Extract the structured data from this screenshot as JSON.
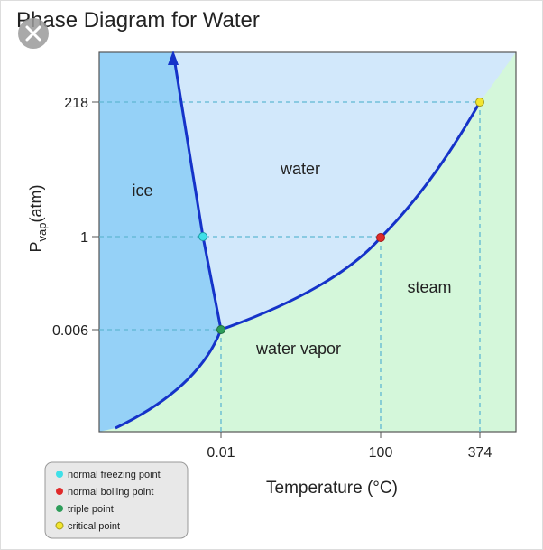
{
  "title": "Phase Diagram for Water",
  "y_axis": {
    "label": {
      "main": "P",
      "subscript": "vap",
      "unit": "(atm)"
    },
    "ticks": [
      "218",
      "1",
      "0.006"
    ]
  },
  "x_axis": {
    "label": "Temperature (°C)",
    "ticks": [
      "0.01",
      "100",
      "374"
    ]
  },
  "regions": [
    "ice",
    "water",
    "steam",
    "water vapor"
  ],
  "legend": [
    "normal freezing point",
    "normal boiling point",
    "triple point",
    "critical point"
  ]
}
